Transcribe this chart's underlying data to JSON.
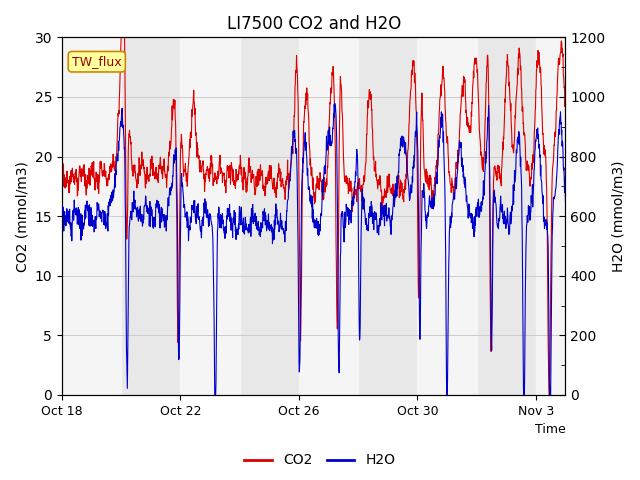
{
  "title": "LI7500 CO2 and H2O",
  "xlabel": "Time",
  "ylabel_left": "CO2 (mmol/m3)",
  "ylabel_right": "H2O (mmol/m3)",
  "ylim_left": [
    0,
    30
  ],
  "ylim_right": [
    0,
    1200
  ],
  "xlim_days": [
    0,
    17
  ],
  "x_ticks_days": [
    0,
    4,
    8,
    12,
    16
  ],
  "x_tick_labels": [
    "Oct 18",
    "Oct 22",
    "Oct 26",
    "Oct 30",
    "Nov 3"
  ],
  "background_color": "#ffffff",
  "plot_bg_color": "#e8e8e8",
  "band_color": "#f5f5f5",
  "co2_color": "#dd0000",
  "h2o_color": "#0000cc",
  "line_width": 0.8,
  "title_fontsize": 12,
  "label_box_text": "TW_flux",
  "label_box_facecolor": "#ffffa0",
  "label_box_edgecolor": "#cc8800",
  "legend_labels": [
    "CO2",
    "H2O"
  ],
  "white_bands": [
    [
      0,
      2
    ],
    [
      4,
      6
    ],
    [
      8,
      10
    ],
    [
      12,
      14
    ],
    [
      16,
      17
    ]
  ],
  "yticks_left": [
    0,
    5,
    10,
    15,
    20,
    25,
    30
  ],
  "yticks_right": [
    0,
    200,
    400,
    600,
    800,
    1000,
    1200
  ],
  "grid_color": "#cccccc",
  "figsize": [
    6.4,
    4.8
  ],
  "dpi": 100
}
